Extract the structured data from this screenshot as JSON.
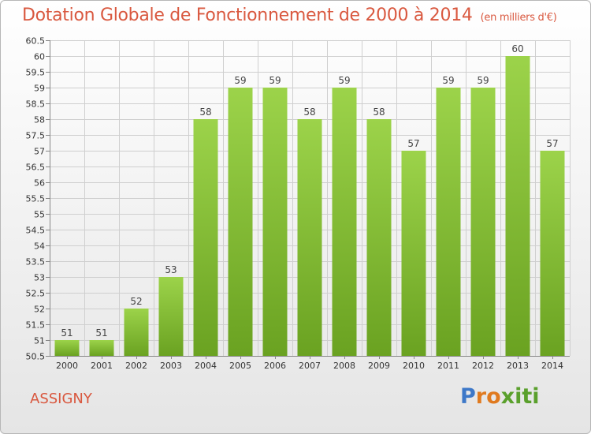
{
  "header": {
    "title": "Dotation Globale de Fonctionnement de 2000 à 2014",
    "subtitle": "(en milliers d'€)"
  },
  "footer": {
    "commune": "ASSIGNY",
    "logo_letters": [
      "P",
      "r",
      "o",
      "x",
      "i",
      "t",
      "i"
    ],
    "logo_colors": [
      "#3d78c8",
      "#e07a1f",
      "#e07a1f",
      "#5aa02c",
      "#5aa02c",
      "#5aa02c",
      "#5aa02c"
    ]
  },
  "colors": {
    "title": "#d9583f",
    "bar_light": "#9cd34a",
    "bar_dark": "#6aa221",
    "grid": "#cfcfcf"
  },
  "chart_data": {
    "type": "bar",
    "categories": [
      "2000",
      "2001",
      "2002",
      "2003",
      "2004",
      "2005",
      "2006",
      "2007",
      "2008",
      "2009",
      "2010",
      "2011",
      "2012",
      "2013",
      "2014"
    ],
    "values": [
      51,
      51,
      52,
      53,
      58,
      59,
      59,
      58,
      59,
      58,
      57,
      59,
      59,
      60,
      57
    ],
    "data_labels": [
      "51",
      "51",
      "52",
      "53",
      "58",
      "59",
      "59",
      "58",
      "59",
      "58",
      "57",
      "59",
      "59",
      "60",
      "57"
    ],
    "ylim": [
      50.5,
      60.5
    ],
    "yticks": [
      "50.5",
      "51",
      "51.5",
      "52",
      "52.5",
      "53",
      "53.5",
      "54",
      "54.5",
      "55",
      "55.5",
      "56",
      "56.5",
      "57",
      "57.5",
      "58",
      "58.5",
      "59",
      "59.5",
      "60",
      "60.5"
    ],
    "grid": true,
    "legend": "none"
  }
}
